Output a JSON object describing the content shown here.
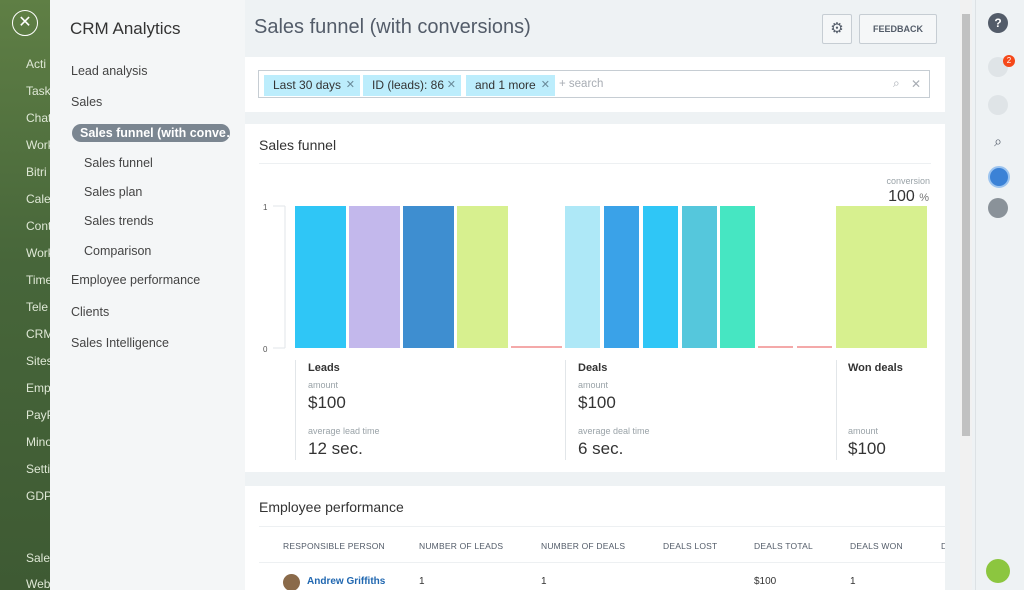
{
  "app_menu": [
    "Acti",
    "Task",
    "Chat",
    "Work",
    "Bitri",
    "Cale",
    "Cont",
    "Work",
    "Time",
    "Tele",
    "CRM",
    "Sites",
    "Emp",
    "PayP",
    "Mino",
    "Setti",
    "GDP",
    "Sale",
    "Web"
  ],
  "sidebar": {
    "title": "CRM Analytics",
    "items": [
      "Lead analysis",
      "Sales"
    ],
    "active": "Sales funnel (with conve…",
    "sub_items": [
      "Sales funnel",
      "Sales plan",
      "Sales trends",
      "Comparison"
    ],
    "more_items": [
      "Employee performance",
      "Clients",
      "Sales Intelligence"
    ]
  },
  "header": {
    "title": "Sales funnel (with conversions)",
    "feedback": "FEEDBACK"
  },
  "filter": {
    "tags": [
      "Last 30 days",
      "ID (leads): 86",
      "and 1 more"
    ],
    "placeholder": "+ search"
  },
  "funnel_card": {
    "title": "Sales funnel",
    "conversion_label": "conversion",
    "conversion_value": "100",
    "conversion_unit": "%",
    "stages": [
      {
        "name": "Leads",
        "amount_label": "amount",
        "amount": "$100",
        "time_label": "average lead time",
        "time": "12 sec."
      },
      {
        "name": "Deals",
        "amount_label": "amount",
        "amount": "$100",
        "time_label": "average deal time",
        "time": "6 sec."
      },
      {
        "name": "Won deals",
        "amount_label": "amount",
        "amount": "$100"
      }
    ]
  },
  "chart_data": {
    "type": "bar",
    "categories": [
      null,
      null,
      null,
      null,
      null,
      null,
      null,
      null,
      null,
      null,
      null,
      null,
      null
    ],
    "values": [
      1,
      1,
      1,
      1,
      0,
      1,
      1,
      1,
      1,
      1,
      0,
      0,
      1
    ],
    "colors": [
      "#2fc6f6",
      "#c3b8ec",
      "#3e8ed0",
      "#d7f08f",
      "#f4a9a9",
      "#aee8f7",
      "#3aa2e8",
      "#2fc6f6",
      "#55c7dc",
      "#46e6c2",
      "#f4a9a9",
      "#f4a9a9",
      "#d7f08f"
    ],
    "ylim": [
      0,
      1
    ],
    "yticks": [
      0,
      1
    ]
  },
  "employee_card": {
    "title": "Employee performance",
    "columns": [
      "RESPONSIBLE PERSON",
      "NUMBER OF LEADS",
      "NUMBER OF DEALS",
      "DEALS LOST",
      "DEALS TOTAL",
      "DEALS WON",
      "D"
    ],
    "rows": [
      {
        "person": "Andrew Griffiths",
        "leads": 1,
        "deals": 1,
        "deals_total": "$100",
        "deals_won": 1
      }
    ]
  },
  "right_bar": {
    "notification_count": 2
  }
}
